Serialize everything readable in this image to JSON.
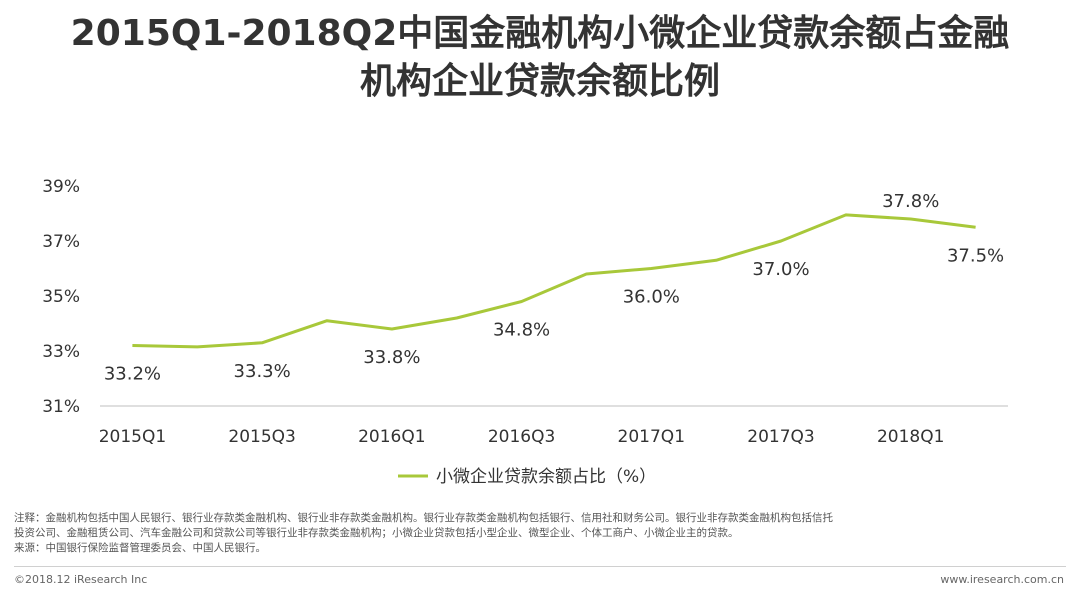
{
  "title": {
    "line1": "2015Q1-2018Q2中国金融机构小微企业贷款余额占金融",
    "line2": "机构企业贷款余额比例"
  },
  "chart_data": {
    "type": "line",
    "x": [
      "2015Q1",
      "2015Q2",
      "2015Q3",
      "2015Q4",
      "2016Q1",
      "2016Q2",
      "2016Q3",
      "2016Q4",
      "2017Q1",
      "2017Q2",
      "2017Q3",
      "2017Q4",
      "2018Q1",
      "2018Q2"
    ],
    "x_tick_labels": [
      "2015Q1",
      "2015Q3",
      "2016Q1",
      "2016Q3",
      "2017Q1",
      "2017Q3",
      "2018Q1"
    ],
    "series": [
      {
        "name": "小微企业贷款余额占比（%）",
        "values": [
          33.2,
          33.15,
          33.3,
          34.1,
          33.8,
          34.2,
          34.8,
          35.8,
          36.0,
          36.3,
          37.0,
          37.95,
          37.8,
          37.5
        ],
        "color": "#a8c83a"
      }
    ],
    "data_labels": [
      {
        "index": 0,
        "text": "33.2%"
      },
      {
        "index": 2,
        "text": "33.3%"
      },
      {
        "index": 4,
        "text": "33.8%"
      },
      {
        "index": 6,
        "text": "34.8%"
      },
      {
        "index": 8,
        "text": "36.0%"
      },
      {
        "index": 10,
        "text": "37.0%"
      },
      {
        "index": 12,
        "text": "37.8%"
      },
      {
        "index": 13,
        "text": "37.5%"
      }
    ],
    "y_ticks": [
      "39%",
      "37%",
      "35%",
      "33%",
      "31%"
    ],
    "ylim": [
      31,
      39
    ],
    "grid": false,
    "legend_position": "bottom-center"
  },
  "note": {
    "line1": "注释：金融机构包括中国人民银行、银行业存款类金融机构、银行业非存款类金融机构。银行业存款类金融机构包括银行、信用社和财务公司。银行业非存款类金融机构包括信托",
    "line2": "投资公司、金融租赁公司、汽车金融公司和贷款公司等银行业非存款类金融机构；小微企业贷款包括小型企业、微型企业、个体工商户、小微企业主的贷款。",
    "source": "来源：中国银行保险监督管理委员会、中国人民银行。"
  },
  "footer": {
    "left": "©2018.12 iResearch Inc",
    "right": "www.iresearch.com.cn"
  }
}
